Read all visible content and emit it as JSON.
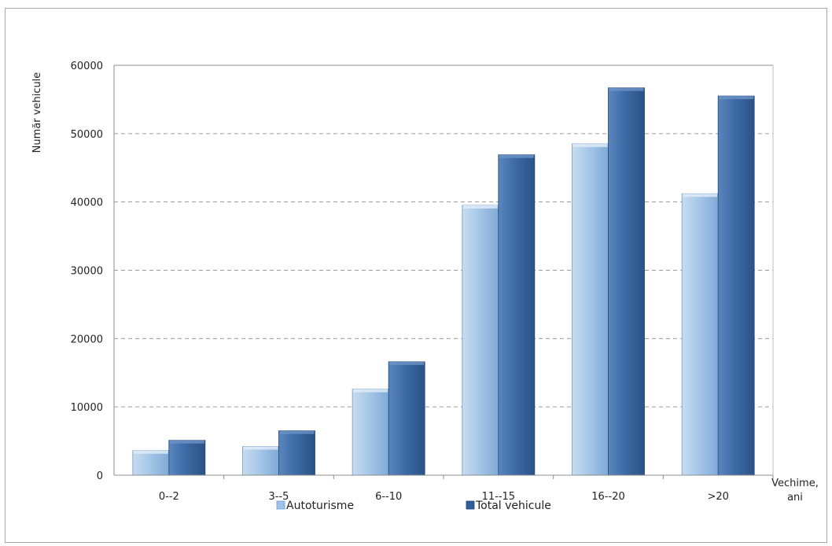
{
  "chart_data": {
    "type": "bar",
    "title": "",
    "ylabel": "Număr vehicule",
    "xlabel": "Vechime, ani",
    "xlabel_lines": [
      "Vechime,",
      "ani"
    ],
    "categories": [
      "0--2",
      "3--5",
      "6--10",
      "11--15",
      "16--20",
      ">20"
    ],
    "series": [
      {
        "name": "Autoturisme",
        "color": "#9dc3e6",
        "values": [
          3600,
          4200,
          12600,
          39500,
          48500,
          41200
        ]
      },
      {
        "name": "Total vehicule",
        "color": "#3b6aa3",
        "values": [
          5100,
          6500,
          16600,
          46900,
          56700,
          55500
        ]
      }
    ],
    "ylim": [
      0,
      60000
    ],
    "yticks": [
      0,
      10000,
      20000,
      30000,
      40000,
      50000,
      60000
    ],
    "grid": true,
    "legend_position": "bottom"
  }
}
